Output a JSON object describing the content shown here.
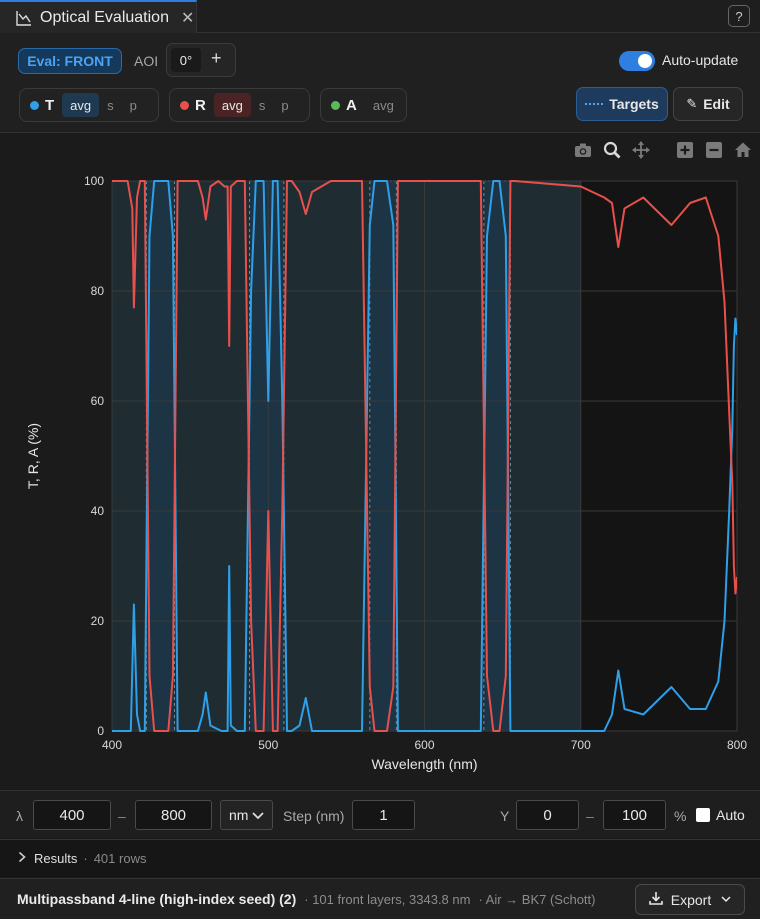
{
  "tab": {
    "title": "Optical Evaluation",
    "close": "✕"
  },
  "help": "?",
  "toolbar": {
    "eval_label": "Eval: FRONT",
    "aoi_label": "AOI",
    "aoi_value": "0°",
    "aoi_add": "+",
    "auto_update_label": "Auto-update",
    "auto_update_on": true,
    "targets_label": "Targets",
    "edit_label": "Edit"
  },
  "pills": [
    {
      "letter": "T",
      "color": "#2f9fe8",
      "options": [
        "avg",
        "s",
        "p"
      ],
      "selected": "avg"
    },
    {
      "letter": "R",
      "color": "#e8504c",
      "options": [
        "avg",
        "s",
        "p"
      ],
      "selected": "avg"
    },
    {
      "letter": "A",
      "color": "#5cb85c",
      "options": [
        "avg"
      ],
      "selected": "none"
    }
  ],
  "modebar": [
    "camera-icon",
    "zoom-icon",
    "pan-icon",
    "zoom-in-icon",
    "zoom-out-icon",
    "home-icon"
  ],
  "chart_data": {
    "type": "line",
    "xlabel": "Wavelength (nm)",
    "ylabel": "T, R, A (%)",
    "xlim": [
      400,
      800
    ],
    "ylim": [
      0,
      100
    ],
    "xticks": [
      400,
      500,
      600,
      700,
      800
    ],
    "yticks": [
      0,
      20,
      40,
      60,
      80,
      100
    ],
    "grid": true,
    "target_region": [
      400,
      700
    ],
    "passbands": [
      [
        422,
        440
      ],
      [
        488,
        510
      ],
      [
        565,
        582
      ],
      [
        638,
        655
      ]
    ],
    "series": [
      {
        "name": "T",
        "color": "#2f9fe8",
        "x": [
          400,
          412,
          414,
          416,
          418,
          421,
          424,
          427,
          436,
          439,
          442,
          455,
          458,
          460,
          463,
          470,
          474,
          475,
          476,
          480,
          485,
          489,
          492,
          497,
          500,
          503,
          506,
          509,
          512,
          515,
          520,
          524,
          528,
          560,
          565,
          568,
          572,
          576,
          580,
          583,
          586,
          600,
          620,
          636,
          640,
          644,
          648,
          652,
          655,
          658,
          700,
          715,
          720,
          724,
          728,
          740,
          758,
          770,
          780,
          788,
          792,
          795,
          797,
          798,
          799,
          800
        ],
        "y": [
          0,
          0,
          23,
          3,
          0,
          0,
          90,
          100,
          100,
          90,
          0,
          0,
          3,
          7,
          1,
          0,
          0,
          30,
          1,
          0,
          0,
          80,
          100,
          100,
          60,
          100,
          100,
          60,
          0,
          0,
          1,
          6,
          0,
          0,
          92,
          100,
          100,
          100,
          92,
          0,
          0,
          0,
          0,
          0,
          90,
          100,
          100,
          90,
          0,
          0,
          0,
          0,
          3,
          11,
          4,
          3,
          8,
          4,
          4,
          9,
          20,
          40,
          55,
          70,
          75,
          72
        ]
      },
      {
        "name": "R",
        "color": "#e8504c",
        "x": [
          400,
          410,
          413,
          414,
          416,
          418,
          421,
          424,
          427,
          436,
          439,
          442,
          450,
          455,
          458,
          460,
          463,
          468,
          472,
          474,
          475,
          476,
          480,
          485,
          489,
          492,
          497,
          500,
          503,
          506,
          509,
          512,
          515,
          520,
          524,
          528,
          540,
          560,
          565,
          568,
          572,
          576,
          580,
          583,
          586,
          600,
          620,
          636,
          640,
          644,
          648,
          652,
          655,
          658,
          700,
          715,
          720,
          724,
          728,
          740,
          758,
          770,
          780,
          788,
          792,
          795,
          797,
          798,
          799,
          800
        ],
        "y": [
          100,
          100,
          95,
          77,
          97,
          100,
          100,
          10,
          0,
          0,
          10,
          100,
          100,
          100,
          97,
          93,
          99,
          100,
          99,
          99,
          70,
          99,
          100,
          100,
          20,
          0,
          0,
          40,
          0,
          0,
          40,
          100,
          100,
          98,
          94,
          98,
          100,
          100,
          8,
          0,
          0,
          0,
          8,
          100,
          100,
          100,
          100,
          100,
          10,
          0,
          0,
          10,
          100,
          100,
          99,
          97,
          96,
          88,
          95,
          97,
          92,
          96,
          97,
          90,
          78,
          58,
          45,
          30,
          25,
          28
        ]
      }
    ]
  },
  "range": {
    "lambda_label": "λ",
    "lambda_min": "400",
    "dash": "–",
    "lambda_max": "800",
    "unit": "nm",
    "step_label": "Step (nm)",
    "step": "1",
    "y_label": "Y",
    "y_min": "0",
    "y_max": "100",
    "percent": "%",
    "auto_label": "Auto"
  },
  "results": {
    "label": "Results",
    "sep": "·",
    "rows": "401 rows"
  },
  "footer": {
    "design_name": "Multipassband 4-line (high-index seed) (2)",
    "layers": "· 101 front layers, 3343.8 nm",
    "media": "· Air → BK7 (Schott)",
    "export_label": "Export"
  }
}
